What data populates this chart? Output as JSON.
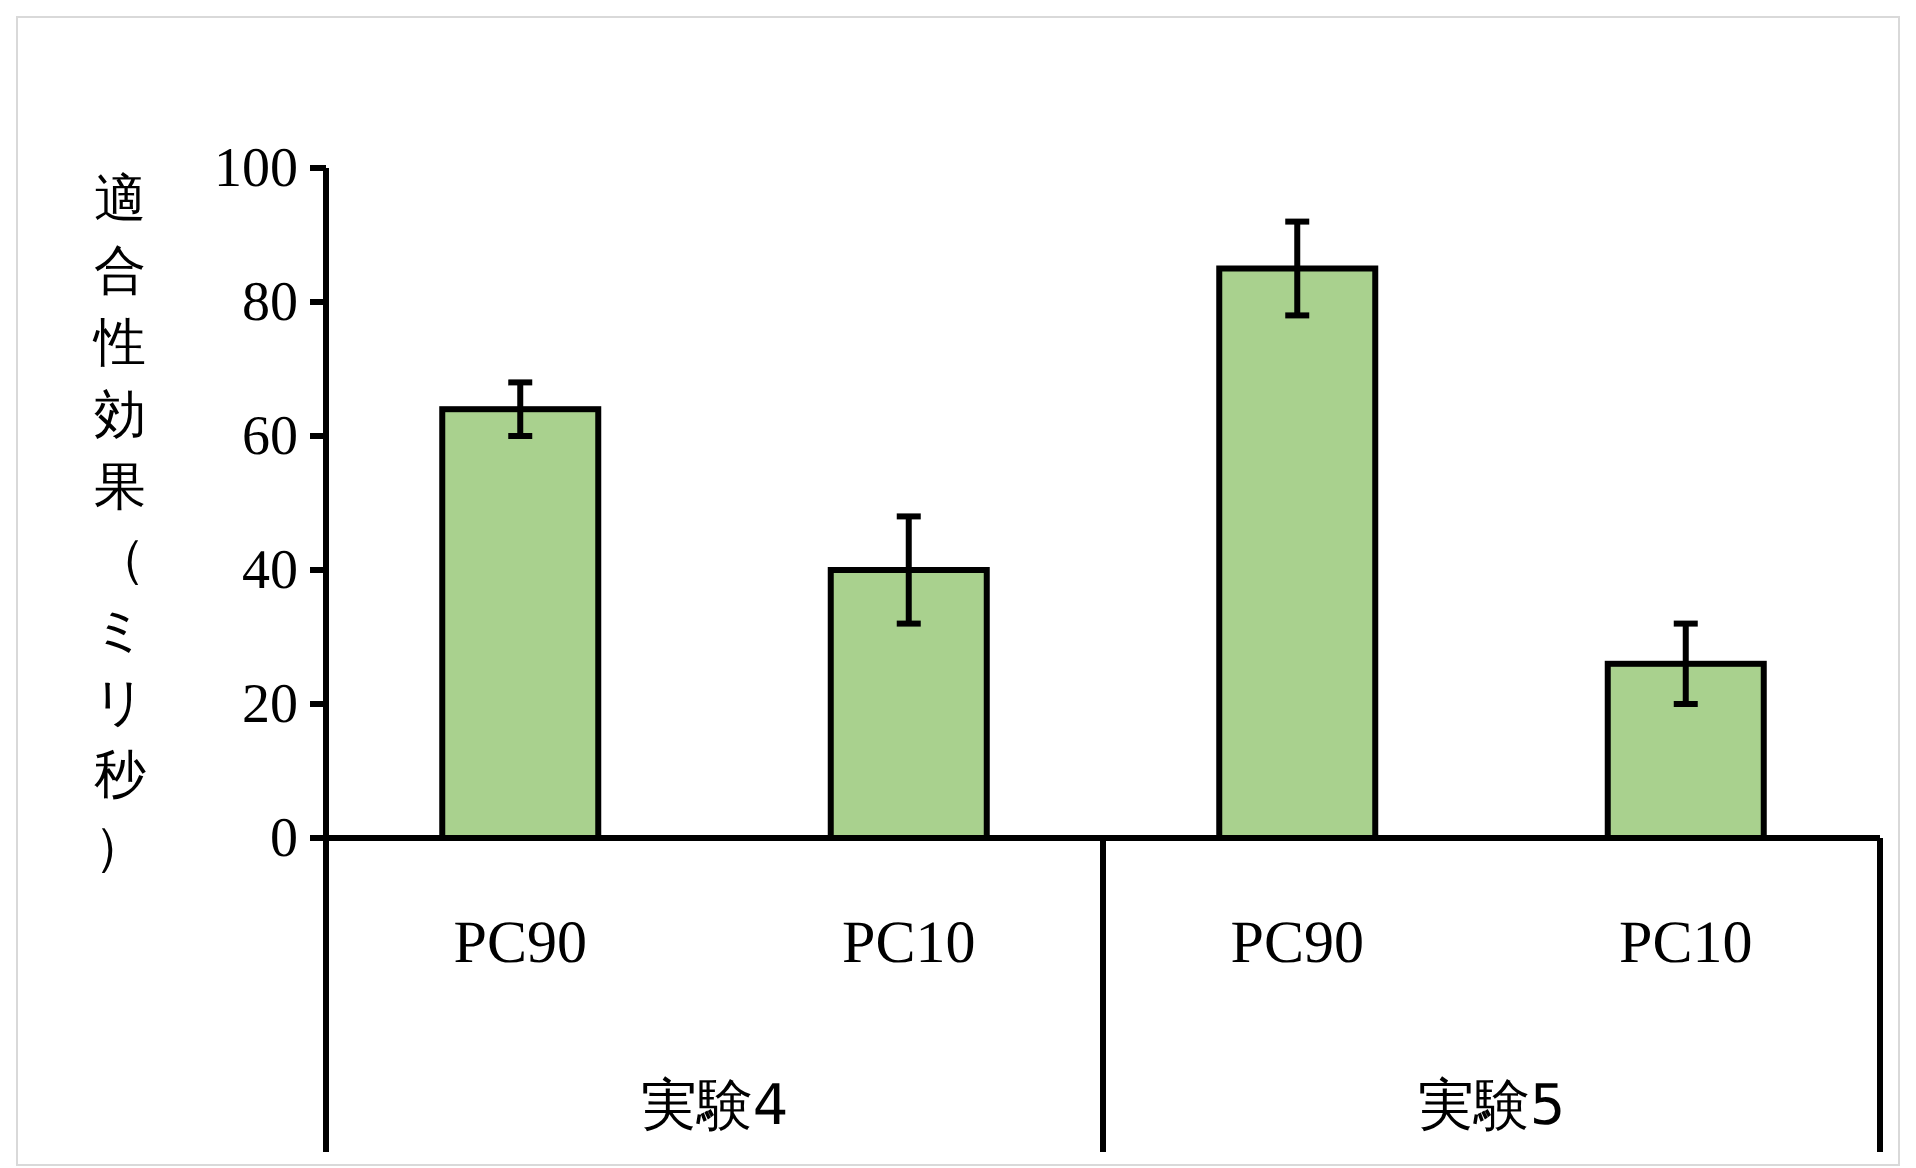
{
  "chart_data": {
    "type": "bar",
    "ylabel": "適合性効果（ミリ秒）",
    "categories": [
      "PC90",
      "PC10",
      "PC90",
      "PC10"
    ],
    "values": [
      64,
      40,
      85,
      26
    ],
    "errors": [
      4,
      8,
      7,
      6
    ],
    "color": "#a9d18e",
    "ylim": [
      0,
      100
    ],
    "yticks": [
      0,
      20,
      40,
      60,
      80,
      100
    ],
    "annotations": [
      "実験4",
      "実験5"
    ]
  }
}
